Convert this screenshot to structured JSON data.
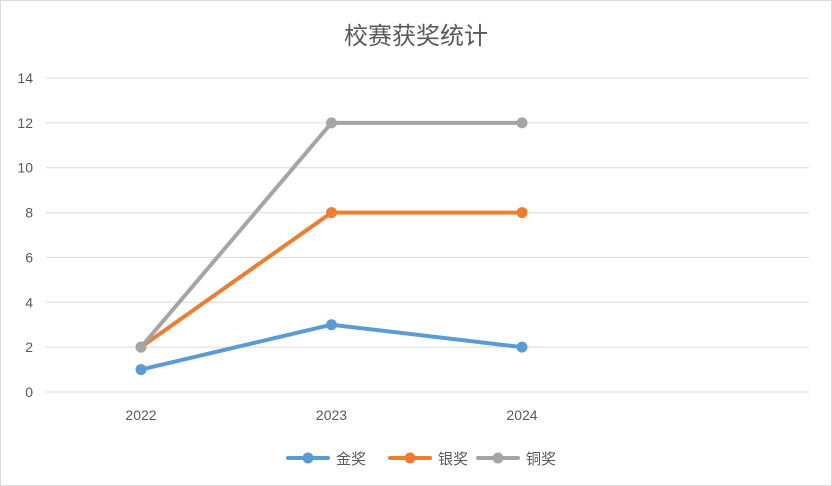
{
  "chart_data": {
    "type": "line",
    "title": "校赛获奖统计",
    "categories": [
      "2022",
      "2023",
      "2024"
    ],
    "ylim": [
      0,
      14
    ],
    "yticks": [
      "0",
      "2",
      "4",
      "6",
      "8",
      "10",
      "12",
      "14"
    ],
    "grid": true,
    "legend_position": "bottom",
    "series": [
      {
        "name": "金奖",
        "values": [
          1,
          3,
          2
        ],
        "color": "#5b9bd5"
      },
      {
        "name": "银奖",
        "values": [
          2,
          8,
          8
        ],
        "color": "#ed7d31"
      },
      {
        "name": "铜奖",
        "values": [
          2,
          12,
          12
        ],
        "color": "#a5a5a5"
      }
    ]
  }
}
